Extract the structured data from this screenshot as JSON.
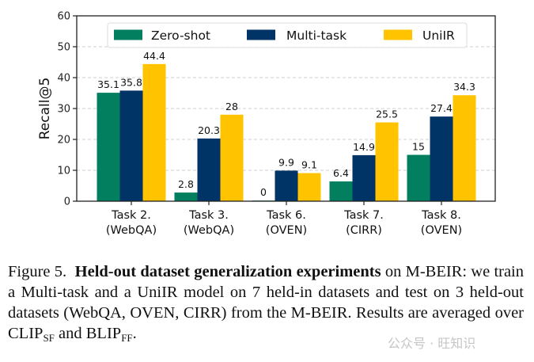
{
  "chart_data": {
    "type": "bar",
    "title": "",
    "xlabel": "",
    "ylabel": "Recall@5",
    "ylim": [
      0,
      60
    ],
    "yticks": [
      0,
      10,
      20,
      30,
      40,
      50,
      60
    ],
    "grid": true,
    "legend_position": "top-center",
    "categories": [
      [
        "Task 2.",
        "(WebQA)"
      ],
      [
        "Task 3.",
        "(WebQA)"
      ],
      [
        "Task 6.",
        "(OVEN)"
      ],
      [
        "Task 7.",
        "(CIRR)"
      ],
      [
        "Task 8.",
        "(OVEN)"
      ]
    ],
    "series": [
      {
        "name": "Zero-shot",
        "color": "#017f5e",
        "values": [
          35.1,
          2.8,
          0,
          6.4,
          15
        ]
      },
      {
        "name": "Multi-task",
        "color": "#003366",
        "values": [
          35.8,
          20.3,
          9.9,
          14.9,
          27.4
        ]
      },
      {
        "name": "UniIR",
        "color": "#ffc300",
        "values": [
          44.4,
          28,
          9.1,
          25.5,
          34.3
        ]
      }
    ]
  },
  "caption": {
    "prefix": "Figure 5.",
    "bold": "Held-out dataset generalization experiments",
    "text1": " on M-BEIR: we train a Multi-task and a UniIR model on 7 held-in datasets and test on 3 held-out datasets (WebQA, OVEN, CIRR) from the M-BEIR. Results are averaged over CLIP",
    "sub1": "SF",
    "text2": " and BLIP",
    "sub2": "FF",
    "text3": "."
  },
  "watermark": "公众号 · 旺知识"
}
